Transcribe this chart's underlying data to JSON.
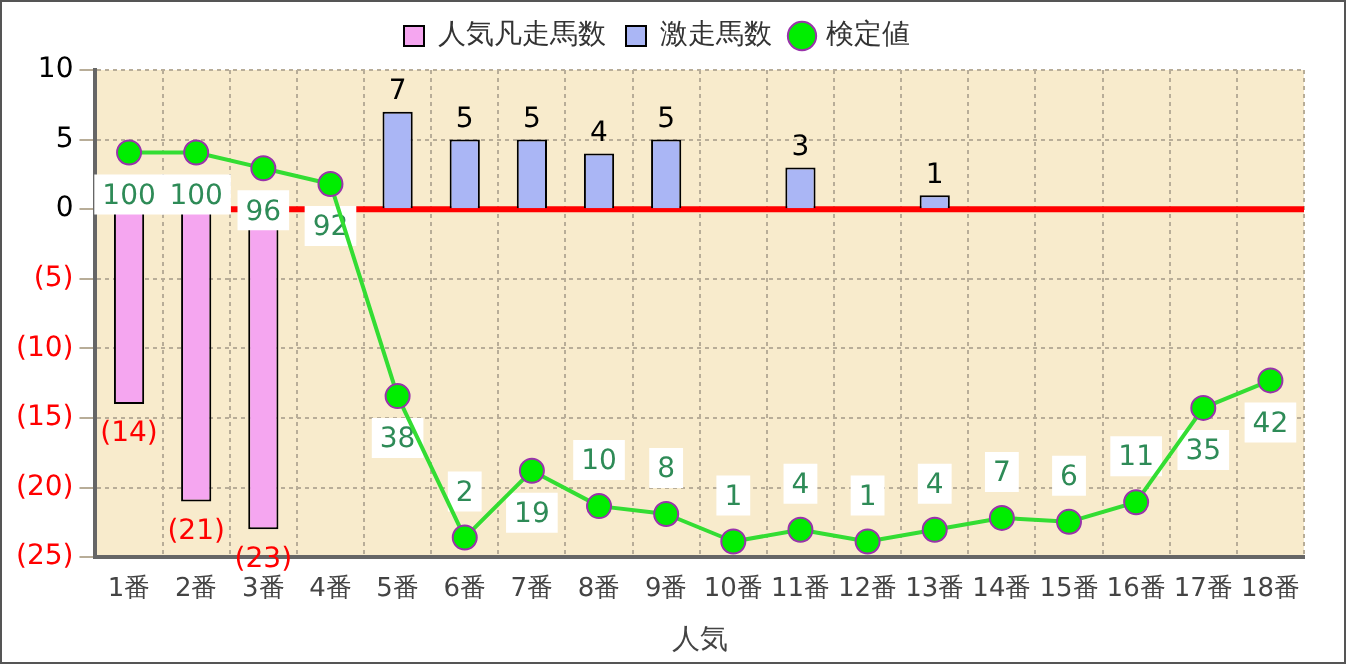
{
  "chart_data": {
    "type": "bar",
    "xlabel": "人気",
    "categories": [
      "1番",
      "2番",
      "3番",
      "4番",
      "5番",
      "6番",
      "7番",
      "8番",
      "9番",
      "10番",
      "11番",
      "12番",
      "13番",
      "14番",
      "15番",
      "16番",
      "17番",
      "18番"
    ],
    "series": [
      {
        "name": "人気凡走馬数",
        "color": "#f5a6f0",
        "values": [
          -14,
          -21,
          -23,
          null,
          null,
          null,
          null,
          null,
          null,
          null,
          null,
          null,
          null,
          null,
          null,
          null,
          null,
          null
        ],
        "value_labels": [
          "(14)",
          "(21)",
          "(23)",
          null,
          null,
          null,
          null,
          null,
          null,
          null,
          null,
          null,
          null,
          null,
          null,
          null,
          null,
          null
        ]
      },
      {
        "name": "激走馬数",
        "color": "#aab6f5",
        "values": [
          null,
          null,
          null,
          null,
          7,
          5,
          5,
          4,
          5,
          null,
          3,
          null,
          1,
          null,
          null,
          null,
          null,
          null
        ],
        "value_labels": [
          null,
          null,
          null,
          null,
          "7",
          "5",
          "5",
          "4",
          "5",
          null,
          "3",
          null,
          "1",
          null,
          null,
          null,
          null,
          null
        ]
      },
      {
        "name": "検定値",
        "type": "line",
        "axis": "y2",
        "color": "#33dd33",
        "marker": "circle",
        "values": [
          100,
          100,
          96,
          92,
          38,
          2,
          19,
          10,
          8,
          1,
          4,
          1,
          4,
          7,
          6,
          11,
          35,
          42
        ],
        "value_labels": [
          "100",
          "100",
          "96",
          "92",
          "38",
          "2",
          "19",
          "10",
          "8",
          "1",
          "4",
          "1",
          "4",
          "7",
          "6",
          "11",
          "35",
          "42"
        ]
      }
    ],
    "ylim": [
      -25,
      10
    ],
    "yticks": [
      {
        "value": -25,
        "label": "(25)"
      },
      {
        "value": -20,
        "label": "(20)"
      },
      {
        "value": -15,
        "label": "(15)"
      },
      {
        "value": -10,
        "label": "(10)"
      },
      {
        "value": -5,
        "label": "(5)"
      },
      0,
      5,
      10
    ],
    "y2lim": [
      -3,
      121
    ],
    "ref_lines": [
      {
        "axis": "y",
        "value": 0,
        "color": "#ff0000"
      }
    ],
    "grid": true,
    "legend": "top"
  }
}
